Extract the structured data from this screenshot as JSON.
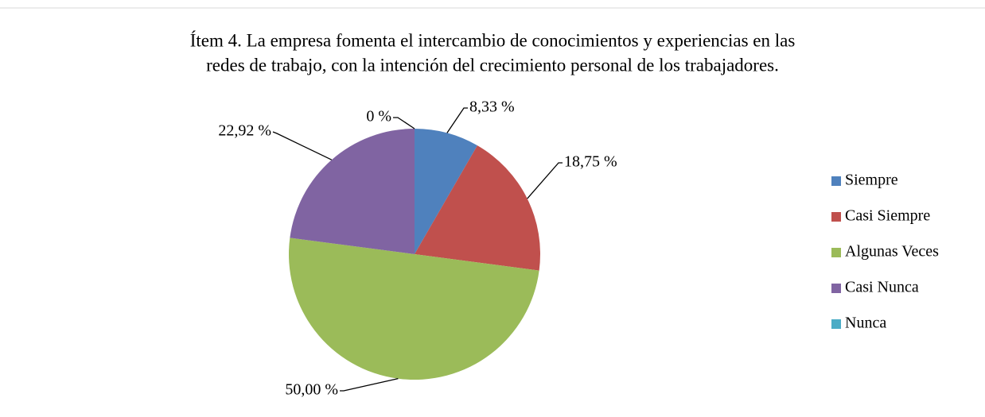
{
  "chart_data": {
    "type": "pie",
    "title": [
      "Ítem 4. La empresa fomenta el intercambio de conocimientos y experiencias en las",
      "redes de trabajo, con la intención del crecimiento personal de los trabajadores."
    ],
    "categories": [
      "Siempre",
      "Casi Siempre",
      "Algunas Veces",
      "Casi Nunca",
      "Nunca"
    ],
    "values": [
      8.33,
      18.75,
      50.0,
      22.92,
      0
    ],
    "value_labels": [
      "8,33 %",
      "18,75 %",
      "50,00 %",
      "22,92 %",
      "0 %"
    ],
    "colors": [
      "#4f81bd",
      "#c0504d",
      "#9bbb59",
      "#8064a2",
      "#4bacc6"
    ],
    "legend": "right"
  }
}
